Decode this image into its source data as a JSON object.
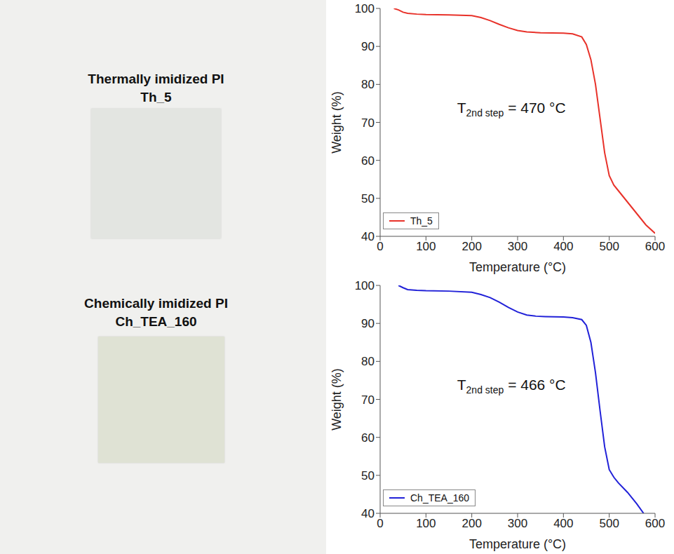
{
  "photos": [
    {
      "title": "Thermally imidized PI",
      "sample": "Th_5"
    },
    {
      "title": "Chemically imidized PI",
      "sample": "Ch_TEA_160"
    }
  ],
  "chart_data": [
    {
      "type": "line",
      "x_label": "Temperature (°C)",
      "y_label": "Weight (%)",
      "xlim": [
        0,
        600
      ],
      "xticks": [
        0,
        100,
        200,
        300,
        400,
        500,
        600
      ],
      "ylim": [
        40,
        100
      ],
      "yticks": [
        40,
        50,
        60,
        70,
        80,
        90,
        100
      ],
      "grid": false,
      "legend": "lower left",
      "annotation": {
        "prefix": "T",
        "subscript": "2nd step",
        "suffix": " = 470 °C"
      },
      "x": [
        30,
        40,
        50,
        60,
        80,
        100,
        150,
        200,
        220,
        240,
        260,
        280,
        300,
        320,
        350,
        400,
        420,
        440,
        450,
        460,
        470,
        480,
        490,
        500,
        510,
        520,
        540,
        560,
        580,
        600
      ],
      "series": [
        {
          "name": "Th_5",
          "color": "#e8322a",
          "marker": "none",
          "line_style": "solid",
          "values": [
            100,
            99.6,
            99.0,
            98.7,
            98.5,
            98.4,
            98.3,
            98.1,
            97.6,
            96.8,
            95.8,
            94.9,
            94.2,
            93.8,
            93.6,
            93.5,
            93.3,
            92.5,
            90.5,
            86.5,
            80,
            71,
            62,
            56,
            53.5,
            52,
            49,
            46,
            43,
            40.8
          ]
        }
      ]
    },
    {
      "type": "line",
      "x_label": "Temperature (°C)",
      "y_label": "Weight (%)",
      "xlim": [
        0,
        600
      ],
      "xticks": [
        0,
        100,
        200,
        300,
        400,
        500,
        600
      ],
      "ylim": [
        40,
        100
      ],
      "yticks": [
        40,
        50,
        60,
        70,
        80,
        90,
        100
      ],
      "grid": false,
      "legend": "lower left",
      "annotation": {
        "prefix": "T",
        "subscript": "2nd step",
        "suffix": " = 466 °C"
      },
      "x": [
        40,
        50,
        60,
        80,
        100,
        150,
        200,
        220,
        240,
        260,
        280,
        300,
        320,
        340,
        360,
        400,
        420,
        440,
        450,
        460,
        470,
        480,
        490,
        500,
        510,
        520,
        540,
        560,
        575
      ],
      "series": [
        {
          "name": "Ch_TEA_160",
          "color": "#2121d8",
          "marker": "none",
          "line_style": "solid",
          "values": [
            100,
            99.4,
            98.9,
            98.7,
            98.6,
            98.5,
            98.2,
            97.6,
            96.8,
            95.6,
            94.2,
            93.0,
            92.2,
            91.9,
            91.8,
            91.7,
            91.5,
            91.0,
            89.5,
            85,
            77,
            67,
            57.5,
            51.5,
            49.5,
            48,
            45.5,
            42.5,
            40
          ]
        }
      ]
    }
  ]
}
